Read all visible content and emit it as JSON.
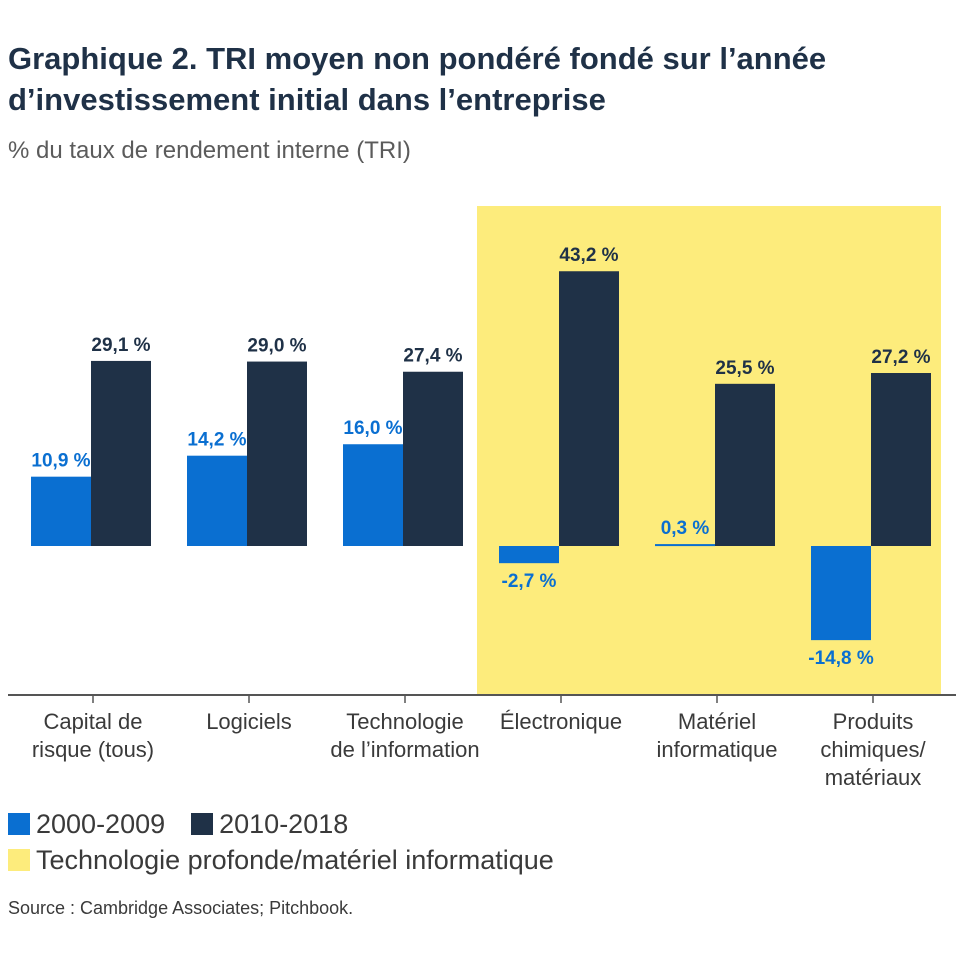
{
  "title": "Graphique 2. TRI moyen non pondéré fondé sur l’année d’investissement initial dans l’entreprise",
  "subtitle": "% du taux de rendement interne (TRI)",
  "source": "Source : Cambridge Associates; Pitchbook.",
  "colors": {
    "series_1": "#0a6fd1",
    "series_2": "#1f3147",
    "highlight": "#fdec7c",
    "axis": "#555555"
  },
  "legend": {
    "series_1": "2000-2009",
    "series_2": "2010-2018",
    "highlight": "Technologie profonde/matériel informatique"
  },
  "chart_data": {
    "type": "bar",
    "categories": [
      [
        "Capital de",
        "risque (tous)"
      ],
      [
        "Logiciels"
      ],
      [
        "Technologie",
        "de l’information"
      ],
      [
        "Électronique"
      ],
      [
        "Matériel",
        "informatique"
      ],
      [
        "Produits",
        "chimiques/",
        "matériaux"
      ]
    ],
    "series": [
      {
        "name": "2000-2009",
        "values": [
          10.9,
          14.2,
          16.0,
          -2.7,
          0.3,
          -14.8
        ],
        "labels": [
          "10,9 %",
          "14,2 %",
          "16,0 %",
          "-2,7 %",
          "0,3 %",
          "-14,8 %"
        ]
      },
      {
        "name": "2010-2018",
        "values": [
          29.1,
          29.0,
          27.4,
          43.2,
          25.5,
          27.2
        ],
        "labels": [
          "29,1 %",
          "29,0 %",
          "27,4 %",
          "43,2 %",
          "25,5 %",
          "27,2 %"
        ]
      }
    ],
    "highlighted_categories": [
      3,
      4,
      5
    ],
    "ylabel": "% du taux de rendement interne (TRI)",
    "ylim": [
      -24,
      55
    ],
    "grid": false,
    "legend_position": "bottom-left"
  }
}
